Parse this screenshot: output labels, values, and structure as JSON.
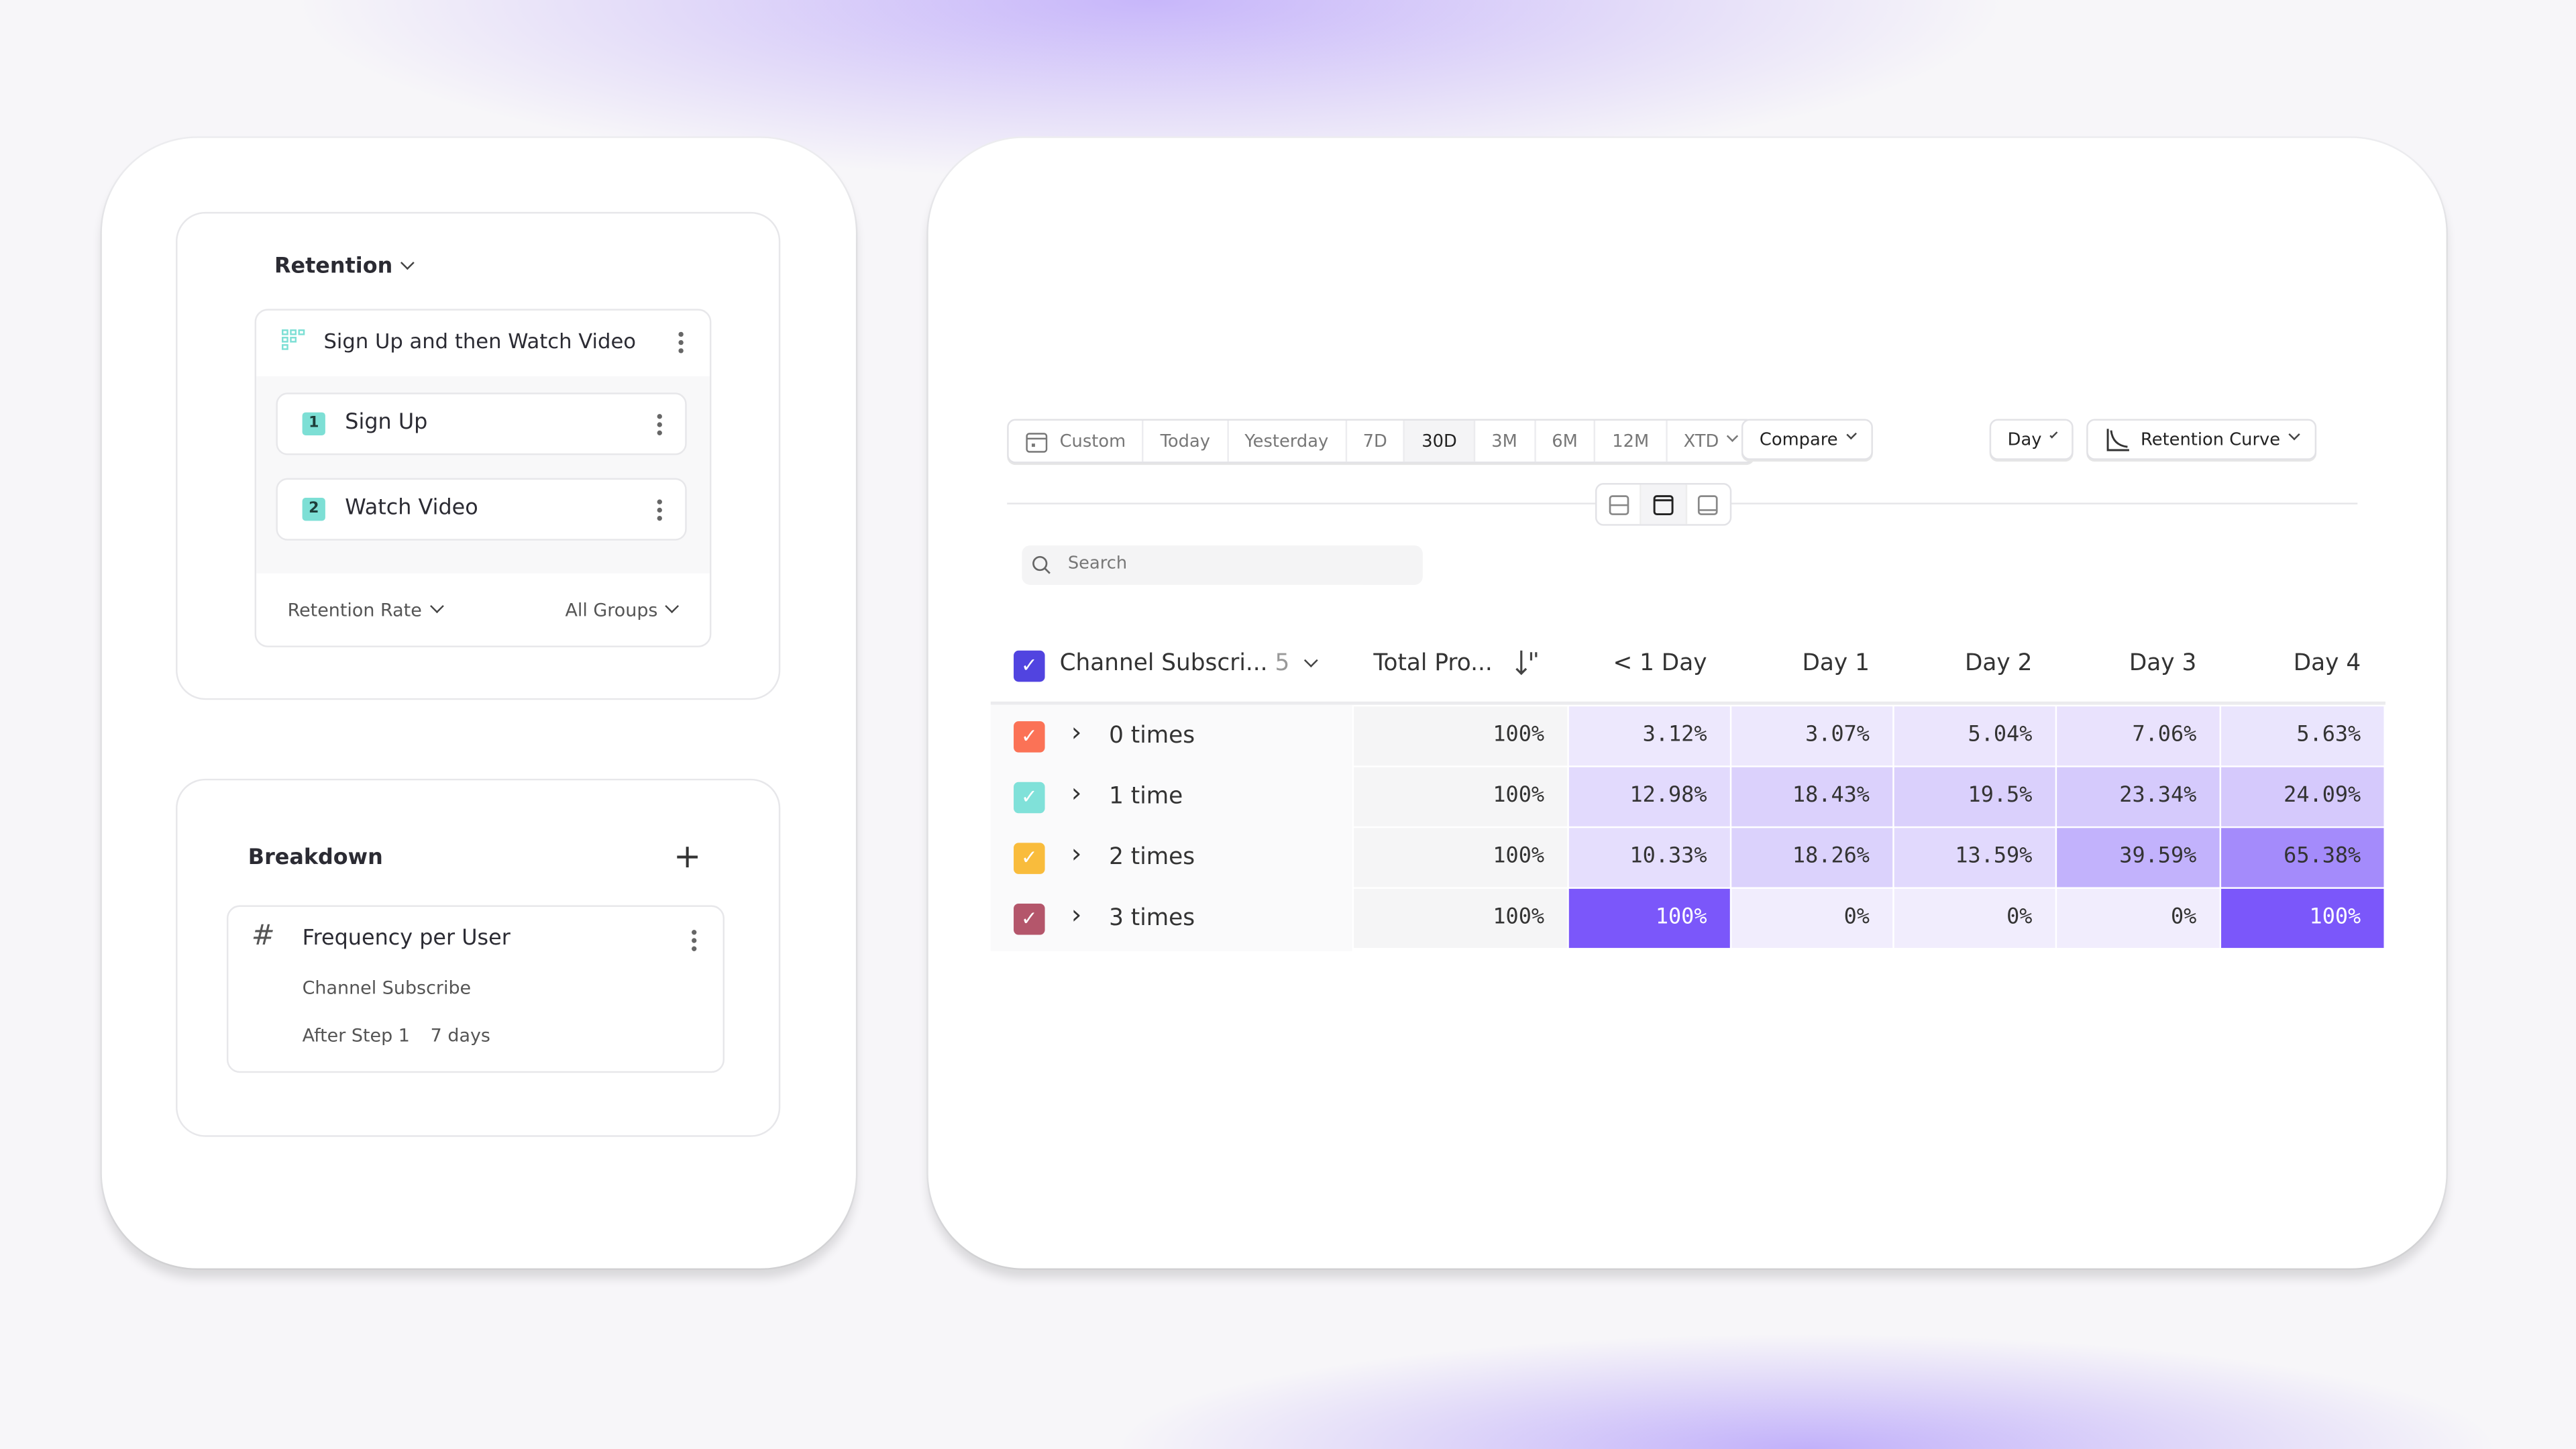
{
  "left": {
    "analysis_type": "Retention",
    "metric_group": {
      "title": "Sign Up and then Watch Video",
      "steps": [
        {
          "number": "1",
          "label": "Sign Up"
        },
        {
          "number": "2",
          "label": "Watch Video"
        }
      ],
      "measure": "Retention Rate",
      "groups": "All Groups"
    },
    "breakdown": {
      "title": "Breakdown",
      "item": {
        "title": "Frequency per User",
        "event": "Channel Subscribe",
        "step": "After Step 1",
        "window": "7 days"
      }
    }
  },
  "toolbar": {
    "date_ranges": [
      "Custom",
      "Today",
      "Yesterday",
      "7D",
      "30D",
      "3M",
      "6M",
      "12M",
      "XTD"
    ],
    "selected_range": "30D",
    "compare": "Compare",
    "interval": "Day",
    "chart_type": "Retention Curve"
  },
  "search": {
    "placeholder": "Search"
  },
  "table": {
    "group_header": "Channel Subscri...",
    "group_count": "5",
    "total_header": "Total Pro...",
    "columns": [
      "< 1 Day",
      "Day 1",
      "Day 2",
      "Day 3",
      "Day 4"
    ],
    "rows": [
      {
        "label": "0 times",
        "color": "#fb7256",
        "total": "100%",
        "values": [
          "3.12%",
          "3.07%",
          "5.04%",
          "7.06%",
          "5.63%"
        ]
      },
      {
        "label": "1 time",
        "color": "#80e1d9",
        "total": "100%",
        "values": [
          "12.98%",
          "18.43%",
          "19.5%",
          "23.34%",
          "24.09%"
        ]
      },
      {
        "label": "2 times",
        "color": "#f9bc3c",
        "total": "100%",
        "values": [
          "10.33%",
          "18.26%",
          "13.59%",
          "39.59%",
          "65.38%"
        ]
      },
      {
        "label": "3 times",
        "color": "#b4566b",
        "total": "100%",
        "values": [
          "100%",
          "0%",
          "0%",
          "0%",
          "100%"
        ]
      }
    ],
    "heat_low": "#f1edfd",
    "heat_high": "#7b57fa",
    "header_checkbox_color": "#5144e0"
  }
}
